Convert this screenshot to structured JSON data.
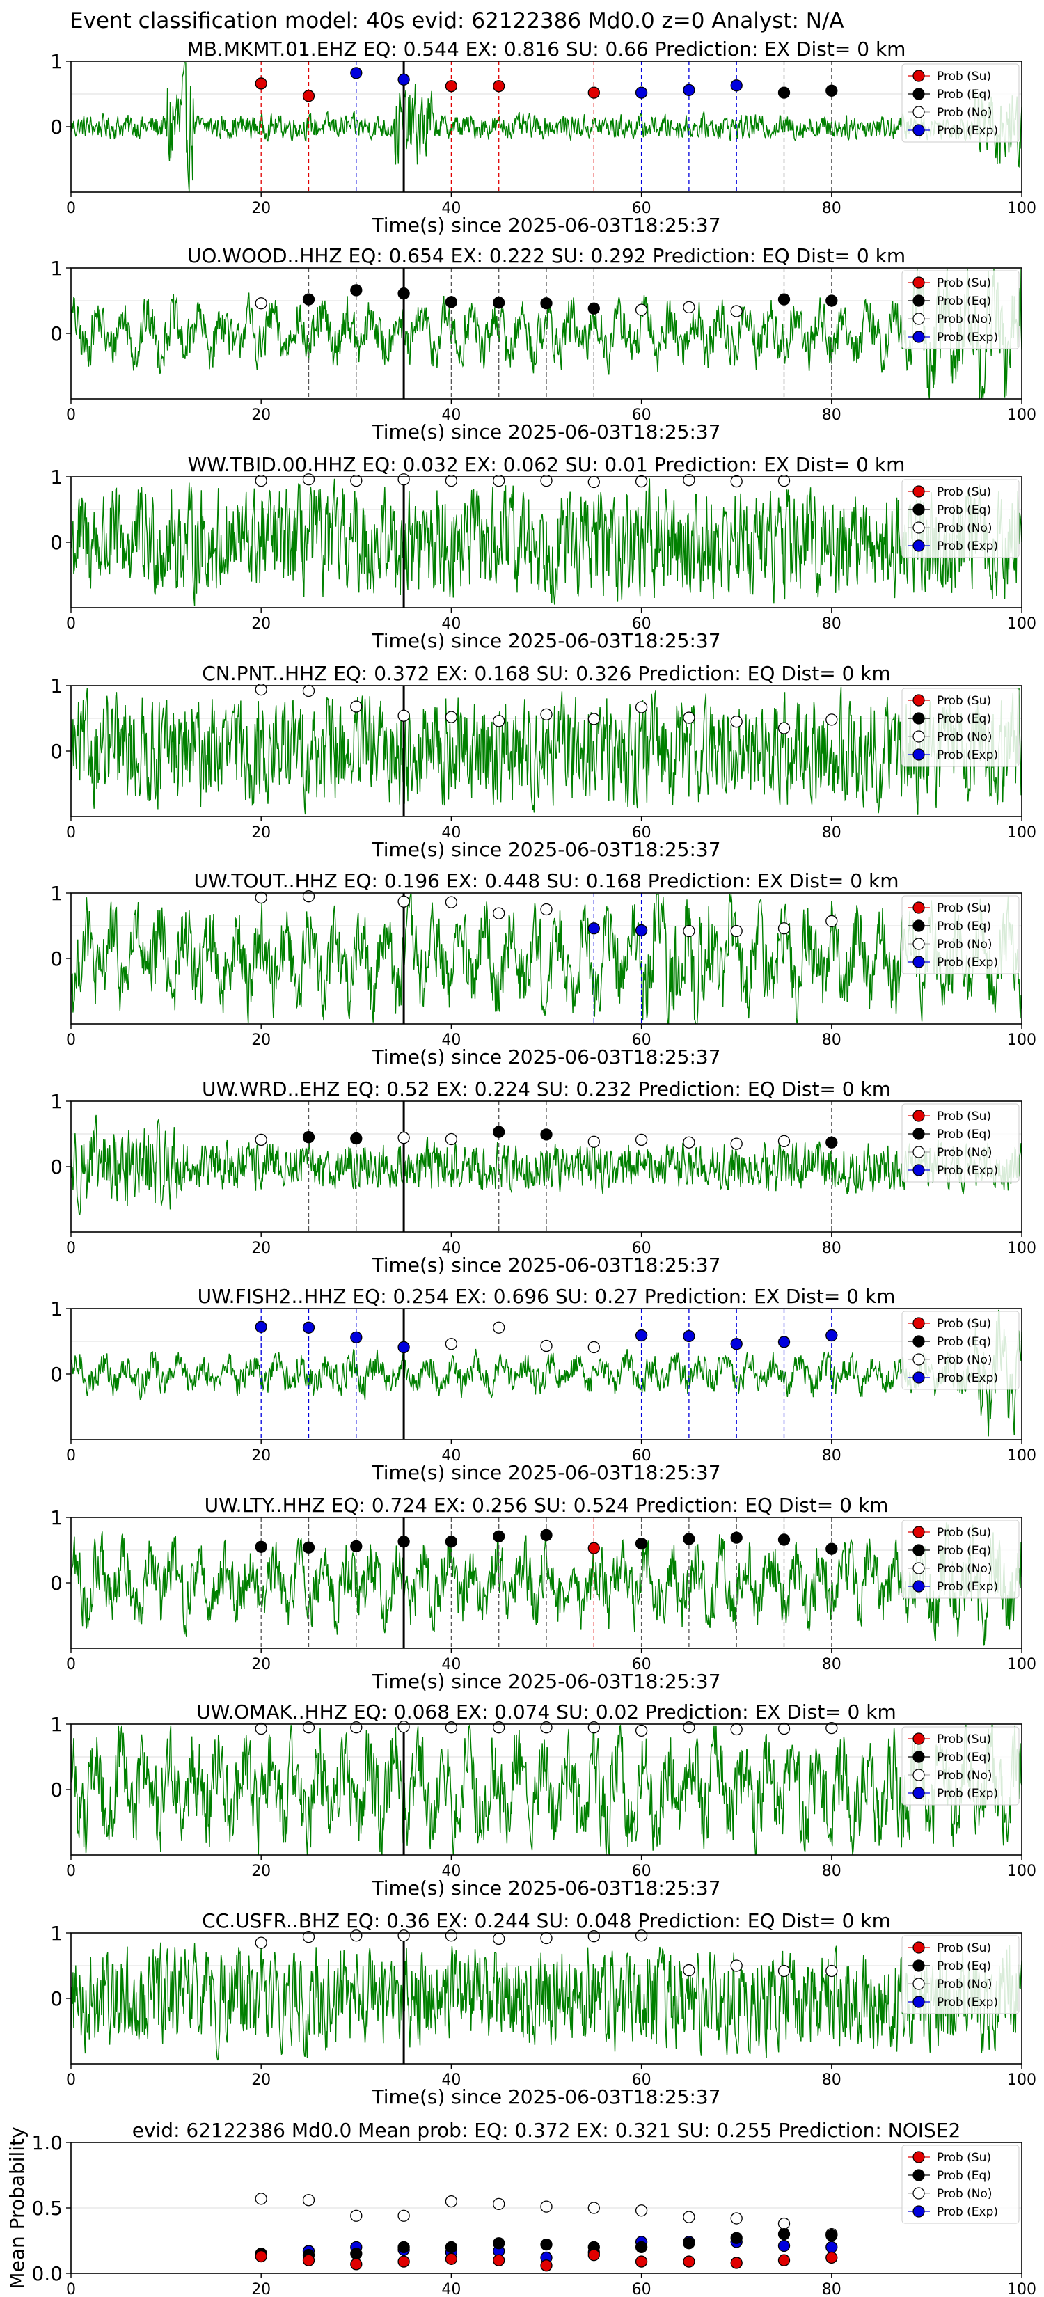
{
  "figure_title": "Event classification model: 40s evid: 62122386 Md0.0 z=0 Analyst: N/A",
  "legend": [
    {
      "label": "Prob (Su)",
      "color": "#e00000"
    },
    {
      "label": "Prob (Eq)",
      "color": "#000000"
    },
    {
      "label": "Prob (No)",
      "color": "#ffffff"
    },
    {
      "label": "Prob (Exp)",
      "color": "#0000dd"
    }
  ],
  "colors": {
    "trace": "#008000",
    "su": "#e00000",
    "eq": "#000000",
    "no": "#ffffff",
    "exp": "#0000dd",
    "origin_line": "#000000"
  },
  "chart_data": [
    {
      "type": "line",
      "title": "MB.MKMT.01.EHZ   EQ: 0.544  EX: 0.816  SU: 0.66   Prediction: EX    Dist= 0 km",
      "xlabel": "Time(s) since 2025-06-03T18:25:37",
      "ylabel": "",
      "xlim": [
        0,
        100
      ],
      "ylim": [
        -1,
        1
      ],
      "xticks": [
        "0",
        "20",
        "40",
        "60",
        "80",
        "100"
      ],
      "yticks": [
        "0",
        "1"
      ],
      "origin_time": 35,
      "windows": [
        {
          "t": 20,
          "cls": "su",
          "p": 0.66
        },
        {
          "t": 25,
          "cls": "su",
          "p": 0.47
        },
        {
          "t": 30,
          "cls": "exp",
          "p": 0.82
        },
        {
          "t": 35,
          "cls": "exp",
          "p": 0.72
        },
        {
          "t": 40,
          "cls": "su",
          "p": 0.62
        },
        {
          "t": 45,
          "cls": "su",
          "p": 0.62
        },
        {
          "t": 55,
          "cls": "su",
          "p": 0.52
        },
        {
          "t": 60,
          "cls": "exp",
          "p": 0.52
        },
        {
          "t": 65,
          "cls": "exp",
          "p": 0.56
        },
        {
          "t": 70,
          "cls": "exp",
          "p": 0.63
        },
        {
          "t": 75,
          "cls": "eq",
          "p": 0.52
        },
        {
          "t": 80,
          "cls": "eq",
          "p": 0.55
        }
      ]
    },
    {
      "type": "line",
      "title": "UO.WOOD..HHZ   EQ: 0.654  EX: 0.222  SU: 0.292   Prediction: EQ    Dist= 0 km",
      "xlabel": "Time(s) since 2025-06-03T18:25:37",
      "ylabel": "",
      "xlim": [
        0,
        100
      ],
      "ylim": [
        -1,
        1
      ],
      "xticks": [
        "0",
        "20",
        "40",
        "60",
        "80",
        "100"
      ],
      "yticks": [
        "0",
        "1"
      ],
      "origin_time": 35,
      "windows": [
        {
          "t": 20,
          "cls": "no",
          "p": 0.46
        },
        {
          "t": 25,
          "cls": "eq",
          "p": 0.52
        },
        {
          "t": 30,
          "cls": "eq",
          "p": 0.66
        },
        {
          "t": 35,
          "cls": "eq",
          "p": 0.61
        },
        {
          "t": 40,
          "cls": "eq",
          "p": 0.48
        },
        {
          "t": 45,
          "cls": "eq",
          "p": 0.47
        },
        {
          "t": 50,
          "cls": "eq",
          "p": 0.46
        },
        {
          "t": 55,
          "cls": "eq",
          "p": 0.38
        },
        {
          "t": 60,
          "cls": "no",
          "p": 0.36
        },
        {
          "t": 65,
          "cls": "no",
          "p": 0.4
        },
        {
          "t": 70,
          "cls": "no",
          "p": 0.34
        },
        {
          "t": 75,
          "cls": "eq",
          "p": 0.52
        },
        {
          "t": 80,
          "cls": "eq",
          "p": 0.5
        }
      ]
    },
    {
      "type": "line",
      "title": "WW.TBID.00.HHZ   EQ: 0.032  EX: 0.062  SU: 0.01   Prediction: EX    Dist= 0 km",
      "xlabel": "Time(s) since 2025-06-03T18:25:37",
      "ylabel": "",
      "xlim": [
        0,
        100
      ],
      "ylim": [
        -1,
        1
      ],
      "xticks": [
        "0",
        "20",
        "40",
        "60",
        "80",
        "100"
      ],
      "yticks": [
        "0",
        "1"
      ],
      "origin_time": 35,
      "windows": [
        {
          "t": 20,
          "cls": "no",
          "p": 0.94
        },
        {
          "t": 25,
          "cls": "no",
          "p": 0.96
        },
        {
          "t": 30,
          "cls": "no",
          "p": 0.94
        },
        {
          "t": 35,
          "cls": "no",
          "p": 0.96
        },
        {
          "t": 40,
          "cls": "no",
          "p": 0.94
        },
        {
          "t": 45,
          "cls": "no",
          "p": 0.94
        },
        {
          "t": 50,
          "cls": "no",
          "p": 0.94
        },
        {
          "t": 55,
          "cls": "no",
          "p": 0.92
        },
        {
          "t": 60,
          "cls": "no",
          "p": 0.93
        },
        {
          "t": 65,
          "cls": "no",
          "p": 0.95
        },
        {
          "t": 70,
          "cls": "no",
          "p": 0.93
        },
        {
          "t": 75,
          "cls": "no",
          "p": 0.94
        }
      ]
    },
    {
      "type": "line",
      "title": "CN.PNT..HHZ   EQ: 0.372  EX: 0.168  SU: 0.326   Prediction: EQ    Dist= 0 km",
      "xlabel": "Time(s) since 2025-06-03T18:25:37",
      "ylabel": "",
      "xlim": [
        0,
        100
      ],
      "ylim": [
        -1,
        1
      ],
      "xticks": [
        "0",
        "20",
        "40",
        "60",
        "80",
        "100"
      ],
      "yticks": [
        "0",
        "1"
      ],
      "origin_time": 35,
      "windows": [
        {
          "t": 20,
          "cls": "no",
          "p": 0.94
        },
        {
          "t": 25,
          "cls": "no",
          "p": 0.92
        },
        {
          "t": 30,
          "cls": "no",
          "p": 0.68
        },
        {
          "t": 35,
          "cls": "no",
          "p": 0.54
        },
        {
          "t": 40,
          "cls": "no",
          "p": 0.52
        },
        {
          "t": 45,
          "cls": "no",
          "p": 0.46
        },
        {
          "t": 50,
          "cls": "no",
          "p": 0.56
        },
        {
          "t": 55,
          "cls": "no",
          "p": 0.49
        },
        {
          "t": 60,
          "cls": "no",
          "p": 0.67
        },
        {
          "t": 65,
          "cls": "no",
          "p": 0.51
        },
        {
          "t": 70,
          "cls": "no",
          "p": 0.45
        },
        {
          "t": 75,
          "cls": "no",
          "p": 0.35
        },
        {
          "t": 80,
          "cls": "no",
          "p": 0.48
        }
      ]
    },
    {
      "type": "line",
      "title": "UW.TOUT..HHZ   EQ: 0.196  EX: 0.448  SU: 0.168   Prediction: EX    Dist= 0 km",
      "xlabel": "Time(s) since 2025-06-03T18:25:37",
      "ylabel": "",
      "xlim": [
        0,
        100
      ],
      "ylim": [
        -1,
        1
      ],
      "xticks": [
        "0",
        "20",
        "40",
        "60",
        "80",
        "100"
      ],
      "yticks": [
        "0",
        "1"
      ],
      "origin_time": 35,
      "windows": [
        {
          "t": 20,
          "cls": "no",
          "p": 0.93
        },
        {
          "t": 25,
          "cls": "no",
          "p": 0.95
        },
        {
          "t": 35,
          "cls": "no",
          "p": 0.87
        },
        {
          "t": 40,
          "cls": "no",
          "p": 0.86
        },
        {
          "t": 45,
          "cls": "no",
          "p": 0.69
        },
        {
          "t": 50,
          "cls": "no",
          "p": 0.75
        },
        {
          "t": 55,
          "cls": "exp",
          "p": 0.46
        },
        {
          "t": 60,
          "cls": "exp",
          "p": 0.43
        },
        {
          "t": 65,
          "cls": "no",
          "p": 0.42
        },
        {
          "t": 70,
          "cls": "no",
          "p": 0.42
        },
        {
          "t": 75,
          "cls": "no",
          "p": 0.46
        },
        {
          "t": 80,
          "cls": "no",
          "p": 0.57
        }
      ]
    },
    {
      "type": "line",
      "title": "UW.WRD..EHZ   EQ: 0.52  EX: 0.224  SU: 0.232   Prediction: EQ    Dist= 0 km",
      "xlabel": "Time(s) since 2025-06-03T18:25:37",
      "ylabel": "",
      "xlim": [
        0,
        100
      ],
      "ylim": [
        -1,
        1
      ],
      "xticks": [
        "0",
        "20",
        "40",
        "60",
        "80",
        "100"
      ],
      "yticks": [
        "0",
        "1"
      ],
      "origin_time": 35,
      "windows": [
        {
          "t": 20,
          "cls": "no",
          "p": 0.41
        },
        {
          "t": 25,
          "cls": "eq",
          "p": 0.45
        },
        {
          "t": 30,
          "cls": "eq",
          "p": 0.43
        },
        {
          "t": 35,
          "cls": "no",
          "p": 0.44
        },
        {
          "t": 40,
          "cls": "no",
          "p": 0.42
        },
        {
          "t": 45,
          "cls": "eq",
          "p": 0.53
        },
        {
          "t": 50,
          "cls": "eq",
          "p": 0.49
        },
        {
          "t": 55,
          "cls": "no",
          "p": 0.38
        },
        {
          "t": 60,
          "cls": "no",
          "p": 0.41
        },
        {
          "t": 65,
          "cls": "no",
          "p": 0.37
        },
        {
          "t": 70,
          "cls": "no",
          "p": 0.35
        },
        {
          "t": 75,
          "cls": "no",
          "p": 0.39
        },
        {
          "t": 80,
          "cls": "eq",
          "p": 0.37
        }
      ]
    },
    {
      "type": "line",
      "title": "UW.FISH2..HHZ   EQ: 0.254  EX: 0.696  SU: 0.27   Prediction: EX    Dist= 0 km",
      "xlabel": "Time(s) since 2025-06-03T18:25:37",
      "ylabel": "",
      "xlim": [
        0,
        100
      ],
      "ylim": [
        -1,
        1
      ],
      "xticks": [
        "0",
        "20",
        "40",
        "60",
        "80",
        "100"
      ],
      "yticks": [
        "0",
        "1"
      ],
      "origin_time": 35,
      "windows": [
        {
          "t": 20,
          "cls": "exp",
          "p": 0.72
        },
        {
          "t": 25,
          "cls": "exp",
          "p": 0.71
        },
        {
          "t": 30,
          "cls": "exp",
          "p": 0.56
        },
        {
          "t": 35,
          "cls": "exp",
          "p": 0.41
        },
        {
          "t": 40,
          "cls": "no",
          "p": 0.46
        },
        {
          "t": 45,
          "cls": "no",
          "p": 0.71
        },
        {
          "t": 50,
          "cls": "no",
          "p": 0.43
        },
        {
          "t": 55,
          "cls": "no",
          "p": 0.41
        },
        {
          "t": 60,
          "cls": "exp",
          "p": 0.59
        },
        {
          "t": 65,
          "cls": "exp",
          "p": 0.58
        },
        {
          "t": 70,
          "cls": "exp",
          "p": 0.46
        },
        {
          "t": 75,
          "cls": "exp",
          "p": 0.49
        },
        {
          "t": 80,
          "cls": "exp",
          "p": 0.59
        }
      ]
    },
    {
      "type": "line",
      "title": "UW.LTY..HHZ   EQ: 0.724  EX: 0.256  SU: 0.524   Prediction: EQ    Dist= 0 km",
      "xlabel": "Time(s) since 2025-06-03T18:25:37",
      "ylabel": "",
      "xlim": [
        0,
        100
      ],
      "ylim": [
        -1,
        1
      ],
      "xticks": [
        "0",
        "20",
        "40",
        "60",
        "80",
        "100"
      ],
      "yticks": [
        "0",
        "1"
      ],
      "origin_time": 35,
      "windows": [
        {
          "t": 20,
          "cls": "eq",
          "p": 0.55
        },
        {
          "t": 25,
          "cls": "eq",
          "p": 0.54
        },
        {
          "t": 30,
          "cls": "eq",
          "p": 0.56
        },
        {
          "t": 35,
          "cls": "eq",
          "p": 0.63
        },
        {
          "t": 40,
          "cls": "eq",
          "p": 0.63
        },
        {
          "t": 45,
          "cls": "eq",
          "p": 0.71
        },
        {
          "t": 50,
          "cls": "eq",
          "p": 0.73
        },
        {
          "t": 55,
          "cls": "su",
          "p": 0.53
        },
        {
          "t": 60,
          "cls": "eq",
          "p": 0.6
        },
        {
          "t": 65,
          "cls": "eq",
          "p": 0.67
        },
        {
          "t": 70,
          "cls": "eq",
          "p": 0.69
        },
        {
          "t": 75,
          "cls": "eq",
          "p": 0.66
        },
        {
          "t": 80,
          "cls": "eq",
          "p": 0.52
        }
      ]
    },
    {
      "type": "line",
      "title": "UW.OMAK..HHZ   EQ: 0.068  EX: 0.074  SU: 0.02   Prediction: EX    Dist= 0 km",
      "xlabel": "Time(s) since 2025-06-03T18:25:37",
      "ylabel": "",
      "xlim": [
        0,
        100
      ],
      "ylim": [
        -1,
        1
      ],
      "xticks": [
        "0",
        "20",
        "40",
        "60",
        "80",
        "100"
      ],
      "yticks": [
        "0",
        "1"
      ],
      "origin_time": 35,
      "windows": [
        {
          "t": 20,
          "cls": "no",
          "p": 0.93
        },
        {
          "t": 25,
          "cls": "no",
          "p": 0.95
        },
        {
          "t": 30,
          "cls": "no",
          "p": 0.95
        },
        {
          "t": 35,
          "cls": "no",
          "p": 0.96
        },
        {
          "t": 40,
          "cls": "no",
          "p": 0.95
        },
        {
          "t": 45,
          "cls": "no",
          "p": 0.95
        },
        {
          "t": 50,
          "cls": "no",
          "p": 0.95
        },
        {
          "t": 55,
          "cls": "no",
          "p": 0.95
        },
        {
          "t": 60,
          "cls": "no",
          "p": 0.9
        },
        {
          "t": 65,
          "cls": "no",
          "p": 0.95
        },
        {
          "t": 70,
          "cls": "no",
          "p": 0.92
        },
        {
          "t": 75,
          "cls": "no",
          "p": 0.93
        },
        {
          "t": 80,
          "cls": "no",
          "p": 0.94
        }
      ]
    },
    {
      "type": "line",
      "title": "CC.USFR..BHZ   EQ: 0.36  EX: 0.244  SU: 0.048   Prediction: EQ    Dist= 0 km",
      "xlabel": "Time(s) since 2025-06-03T18:25:37",
      "ylabel": "",
      "xlim": [
        0,
        100
      ],
      "ylim": [
        -1,
        1
      ],
      "xticks": [
        "0",
        "20",
        "40",
        "60",
        "80",
        "100"
      ],
      "yticks": [
        "0",
        "1"
      ],
      "origin_time": 35,
      "windows": [
        {
          "t": 20,
          "cls": "no",
          "p": 0.85
        },
        {
          "t": 25,
          "cls": "no",
          "p": 0.94
        },
        {
          "t": 30,
          "cls": "no",
          "p": 0.96
        },
        {
          "t": 35,
          "cls": "no",
          "p": 0.96
        },
        {
          "t": 40,
          "cls": "no",
          "p": 0.96
        },
        {
          "t": 45,
          "cls": "no",
          "p": 0.91
        },
        {
          "t": 50,
          "cls": "no",
          "p": 0.92
        },
        {
          "t": 55,
          "cls": "no",
          "p": 0.95
        },
        {
          "t": 60,
          "cls": "no",
          "p": 0.96
        },
        {
          "t": 65,
          "cls": "no",
          "p": 0.43
        },
        {
          "t": 70,
          "cls": "no",
          "p": 0.5
        },
        {
          "t": 75,
          "cls": "no",
          "p": 0.42
        },
        {
          "t": 80,
          "cls": "no",
          "p": 0.42
        }
      ]
    },
    {
      "type": "scatter",
      "title": "evid: 62122386  Md0.0   Mean prob:   EQ: 0.372  EX: 0.321  SU: 0.255   Prediction: NOISE2",
      "xlabel": "",
      "ylabel": "Mean Probability",
      "xlim": [
        0,
        100
      ],
      "ylim": [
        0,
        1
      ],
      "xticks": [
        "0",
        "20",
        "40",
        "60",
        "80",
        "100"
      ],
      "yticks": [
        "0.0",
        "0.5",
        "1.0"
      ],
      "x": [
        20,
        25,
        30,
        35,
        40,
        45,
        50,
        55,
        60,
        65,
        70,
        75,
        80
      ],
      "series": [
        {
          "name": "Prob (No)",
          "cls": "no",
          "values": [
            0.57,
            0.56,
            0.44,
            0.44,
            0.55,
            0.53,
            0.51,
            0.5,
            0.48,
            0.43,
            0.42,
            0.38,
            0.3
          ]
        },
        {
          "name": "Prob (Exp)",
          "cls": "exp",
          "values": [
            0.14,
            0.17,
            0.2,
            0.18,
            0.16,
            0.17,
            0.12,
            0.16,
            0.24,
            0.24,
            0.24,
            0.21,
            0.2
          ]
        },
        {
          "name": "Prob (Eq)",
          "cls": "eq",
          "values": [
            0.15,
            0.14,
            0.15,
            0.2,
            0.2,
            0.23,
            0.22,
            0.2,
            0.2,
            0.23,
            0.27,
            0.3,
            0.29
          ]
        },
        {
          "name": "Prob (Su)",
          "cls": "su",
          "values": [
            0.13,
            0.1,
            0.07,
            0.09,
            0.11,
            0.1,
            0.06,
            0.14,
            0.09,
            0.09,
            0.08,
            0.1,
            0.12
          ]
        }
      ]
    }
  ]
}
